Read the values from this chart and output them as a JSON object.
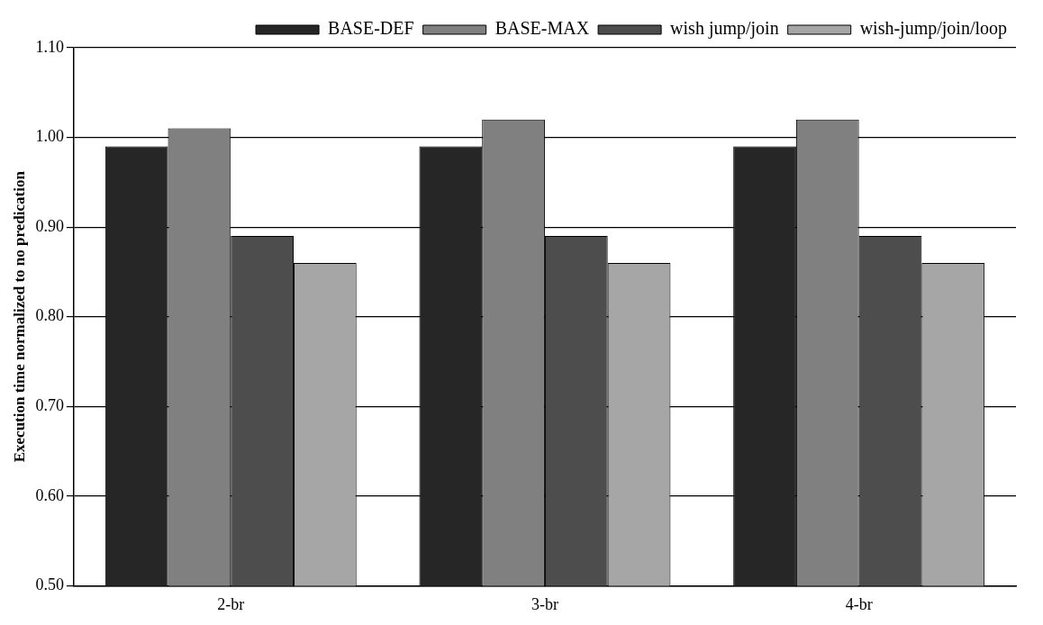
{
  "chart_data": {
    "type": "bar",
    "ylabel": "Execution time normalized to no predication",
    "categories": [
      "2-br",
      "3-br",
      "4-br"
    ],
    "series": [
      {
        "name": "BASE-DEF",
        "color": "#262626",
        "values": [
          0.99,
          0.99,
          0.99
        ]
      },
      {
        "name": "BASE-MAX",
        "color": "#808080",
        "values": [
          1.01,
          1.02,
          1.02
        ]
      },
      {
        "name": "wish jump/join",
        "color": "#4d4d4d",
        "values": [
          0.89,
          0.89,
          0.89
        ]
      },
      {
        "name": "wish-jump/join/loop",
        "color": "#a6a6a6",
        "values": [
          0.86,
          0.86,
          0.86
        ]
      }
    ],
    "ylim": [
      0.5,
      1.1
    ],
    "yticks": [
      {
        "value": 0.5,
        "label": "0.50"
      },
      {
        "value": 0.6,
        "label": "0.60"
      },
      {
        "value": 0.7,
        "label": "0.70"
      },
      {
        "value": 0.8,
        "label": "0.80"
      },
      {
        "value": 0.9,
        "label": "0.90"
      },
      {
        "value": 1.0,
        "label": "1.00"
      },
      {
        "value": 1.1,
        "label": "1.10"
      }
    ],
    "grid": "y",
    "legend": "top right"
  }
}
